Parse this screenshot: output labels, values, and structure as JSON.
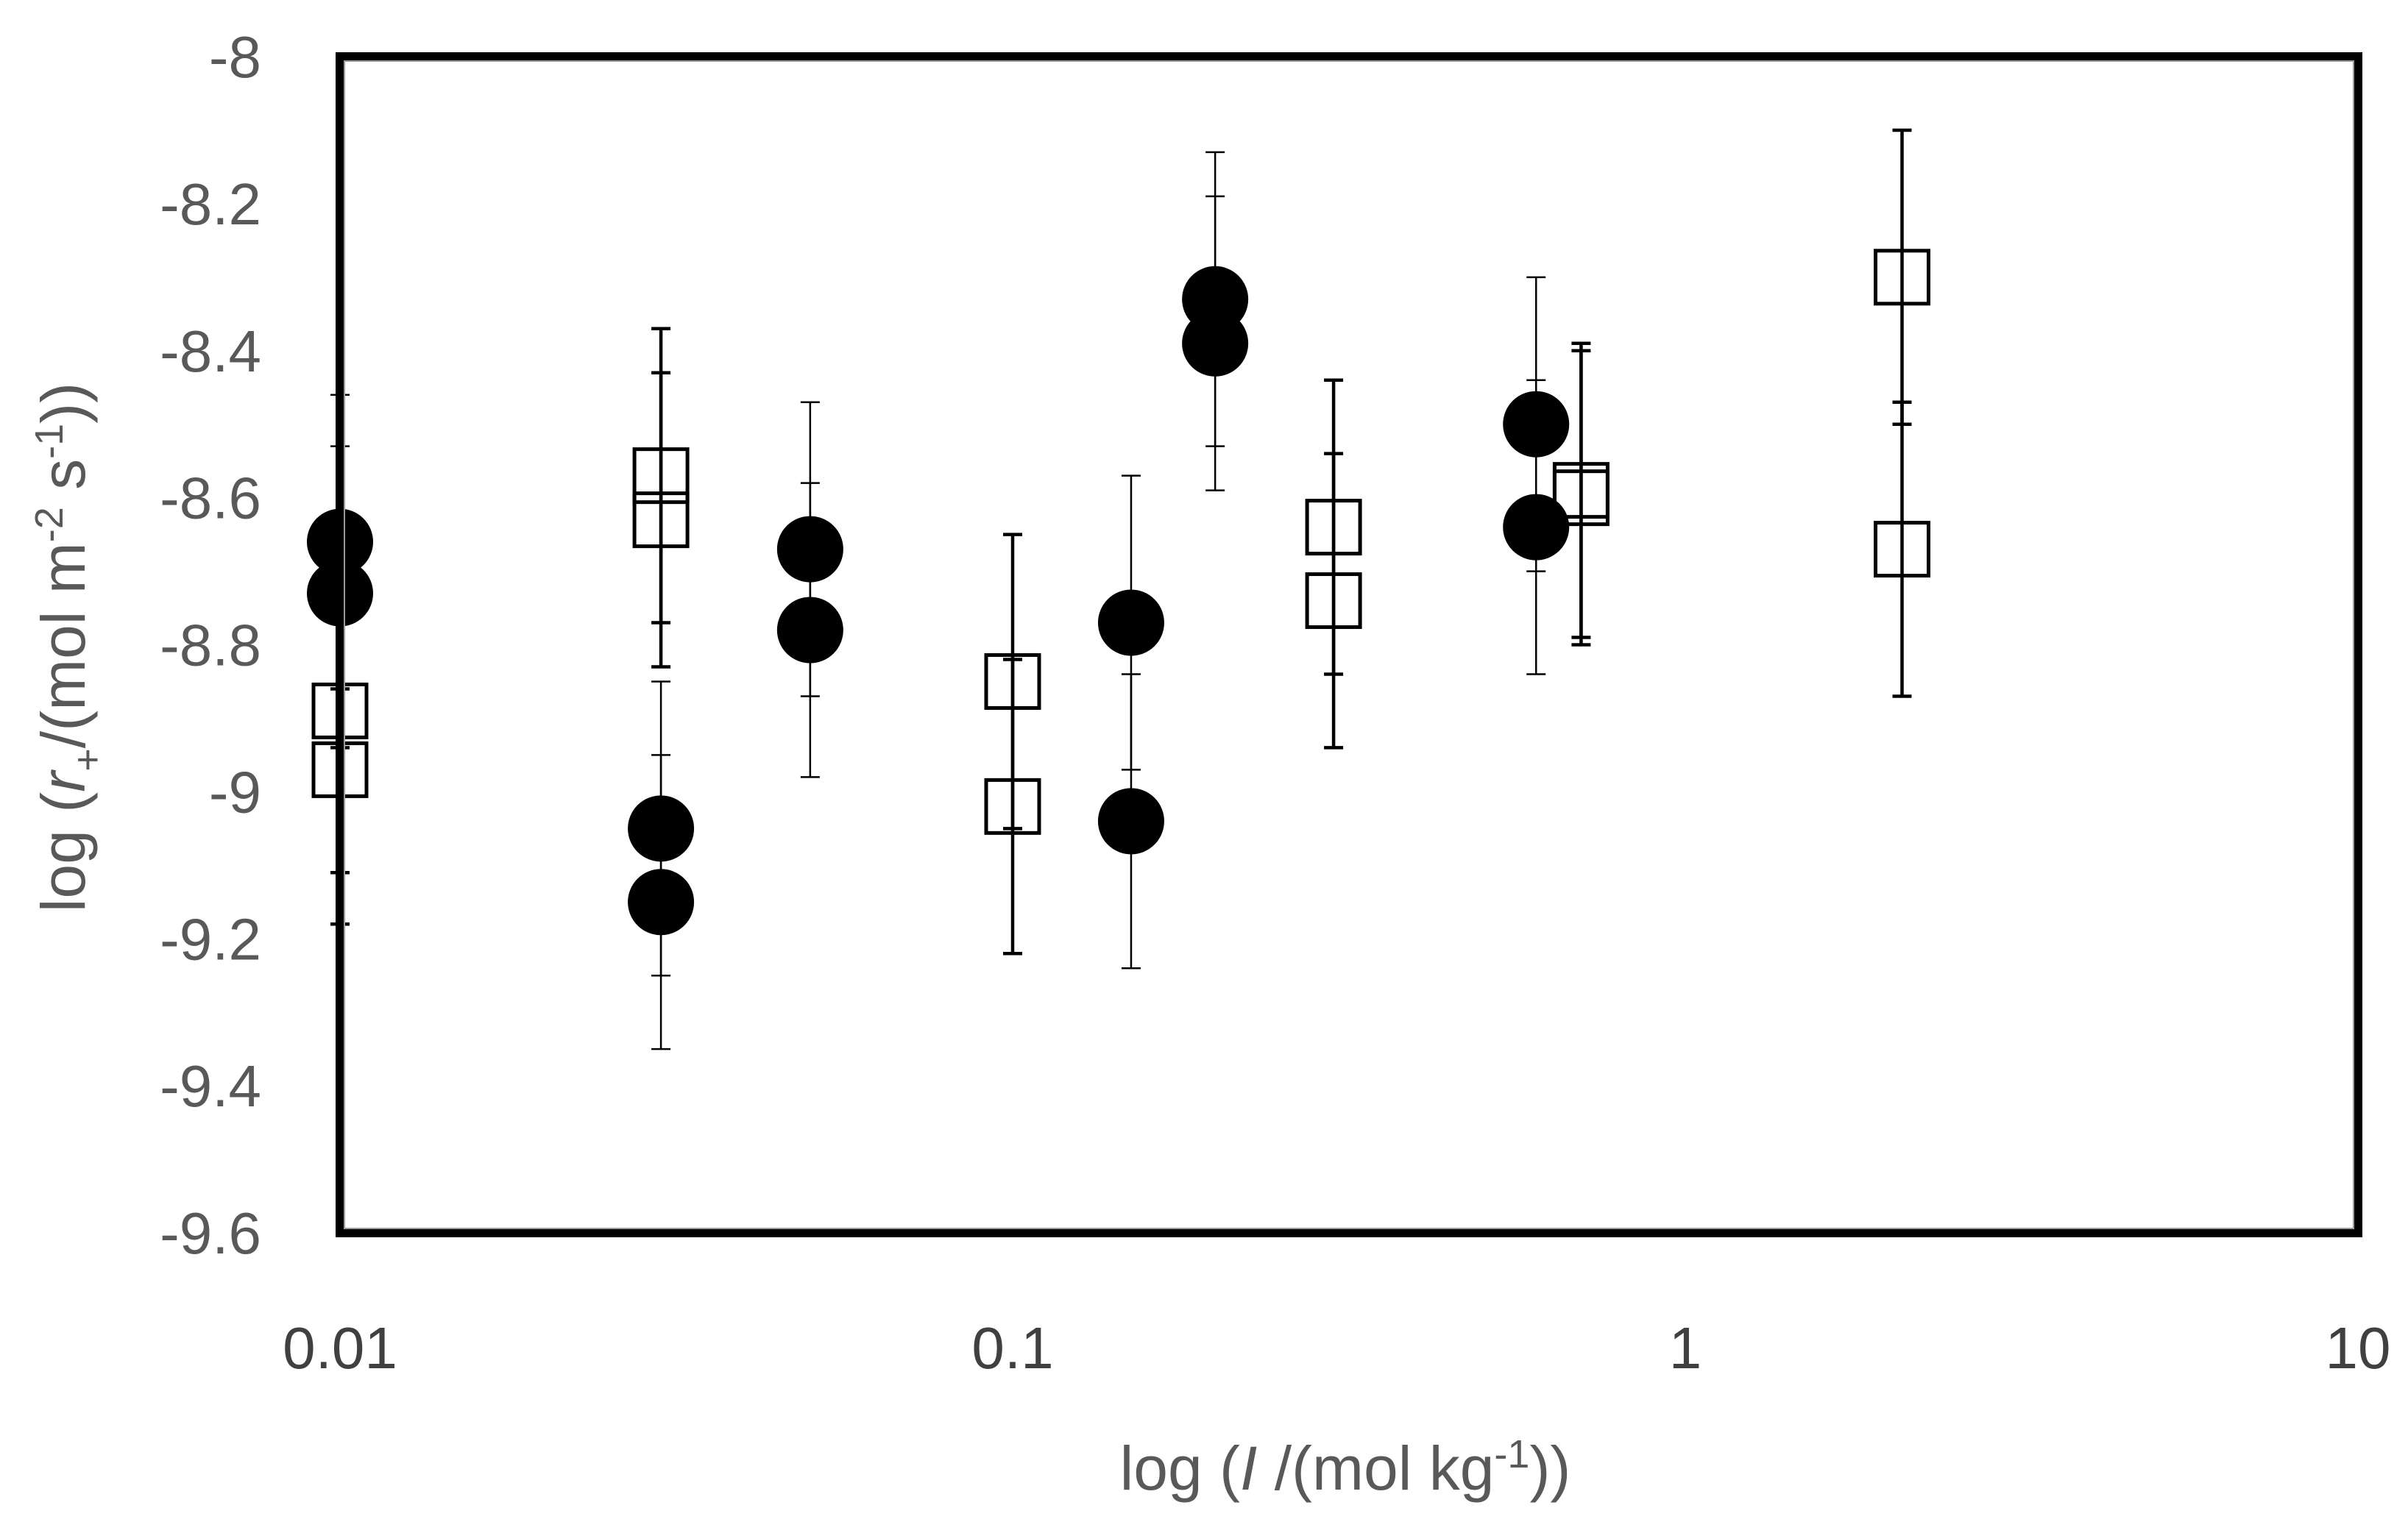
{
  "chart_data": {
    "type": "scatter",
    "title": "",
    "xlabel": {
      "prefix": "log (",
      "var": "I",
      "mid": " /(mol kg",
      "sup": "-1",
      "suffix": "))"
    },
    "ylabel": {
      "prefix": "log (",
      "var": "r",
      "sub": "+",
      "mid": "/(mol m",
      "sup1": "-2",
      "mid2": " s",
      "sup2": "-1",
      "suffix": "))"
    },
    "x_scale": "log",
    "xlim": [
      0.01,
      10
    ],
    "ylim": [
      -9.6,
      -8
    ],
    "x_ticks": [
      {
        "value": 0.01,
        "label": "0.01"
      },
      {
        "value": 0.1,
        "label": "0.1"
      },
      {
        "value": 1,
        "label": "1"
      },
      {
        "value": 10,
        "label": "10"
      }
    ],
    "y_ticks": [
      {
        "value": -8,
        "label": "-8"
      },
      {
        "value": -8.2,
        "label": "-8.2"
      },
      {
        "value": -8.4,
        "label": "-8.4"
      },
      {
        "value": -8.6,
        "label": "-8.6"
      },
      {
        "value": -8.8,
        "label": "-8.8"
      },
      {
        "value": -9,
        "label": "-9"
      },
      {
        "value": -9.2,
        "label": "-9.2"
      },
      {
        "value": -9.4,
        "label": "-9.4"
      },
      {
        "value": -9.6,
        "label": "-9.6"
      }
    ],
    "grid": false,
    "legend": "none",
    "series": [
      {
        "marker": "filled-circle",
        "color": "#000000",
        "points": [
          {
            "x": 0.01,
            "y": -8.66,
            "err_lo": -8.86,
            "err_hi": -8.46
          },
          {
            "x": 0.01,
            "y": -8.73,
            "err_lo": -9.18,
            "err_hi": -8.53
          },
          {
            "x": 0.03,
            "y": -9.05,
            "err_lo": -9.25,
            "err_hi": -8.85
          },
          {
            "x": 0.03,
            "y": -9.15,
            "err_lo": -9.35,
            "err_hi": -8.95
          },
          {
            "x": 0.05,
            "y": -8.67,
            "err_lo": -8.87,
            "err_hi": -8.47
          },
          {
            "x": 0.05,
            "y": -8.78,
            "err_lo": -8.98,
            "err_hi": -8.58
          },
          {
            "x": 0.15,
            "y": -8.77,
            "err_lo": -8.97,
            "err_hi": -8.57
          },
          {
            "x": 0.15,
            "y": -9.04,
            "err_lo": -9.24,
            "err_hi": -8.84
          },
          {
            "x": 0.2,
            "y": -8.33,
            "err_lo": -8.53,
            "err_hi": -8.13
          },
          {
            "x": 0.2,
            "y": -8.39,
            "err_lo": -8.59,
            "err_hi": -8.19
          },
          {
            "x": 0.6,
            "y": -8.5,
            "err_lo": -8.7,
            "err_hi": -8.3
          },
          {
            "x": 0.6,
            "y": -8.64,
            "err_lo": -8.84,
            "err_hi": -8.44
          }
        ]
      },
      {
        "marker": "open-square",
        "color": "#000000",
        "points": [
          {
            "x": 0.01,
            "y": -8.89,
            "err_lo": -9.11,
            "err_hi": -8.86
          },
          {
            "x": 0.01,
            "y": -8.97,
            "err_lo": -9.18,
            "err_hi": -8.94
          },
          {
            "x": 0.03,
            "y": -8.57,
            "err_lo": -8.77,
            "err_hi": -8.37
          },
          {
            "x": 0.03,
            "y": -8.63,
            "err_lo": -8.83,
            "err_hi": -8.43
          },
          {
            "x": 0.1,
            "y": -8.85,
            "err_lo": -9.05,
            "err_hi": -8.65
          },
          {
            "x": 0.1,
            "y": -9.02,
            "err_lo": -9.22,
            "err_hi": -8.82
          },
          {
            "x": 0.3,
            "y": -8.64,
            "err_lo": -8.84,
            "err_hi": -8.44
          },
          {
            "x": 0.3,
            "y": -8.74,
            "err_lo": -8.94,
            "err_hi": -8.54
          },
          {
            "x": 0.7,
            "y": -8.59,
            "err_lo": -8.79,
            "err_hi": -8.39
          },
          {
            "x": 0.7,
            "y": -8.6,
            "err_lo": -8.8,
            "err_hi": -8.4
          },
          {
            "x": 2.1,
            "y": -8.3,
            "err_lo": -8.5,
            "err_hi": -8.1
          },
          {
            "x": 2.1,
            "y": -8.67,
            "err_lo": -8.87,
            "err_hi": -8.47
          }
        ]
      }
    ]
  }
}
